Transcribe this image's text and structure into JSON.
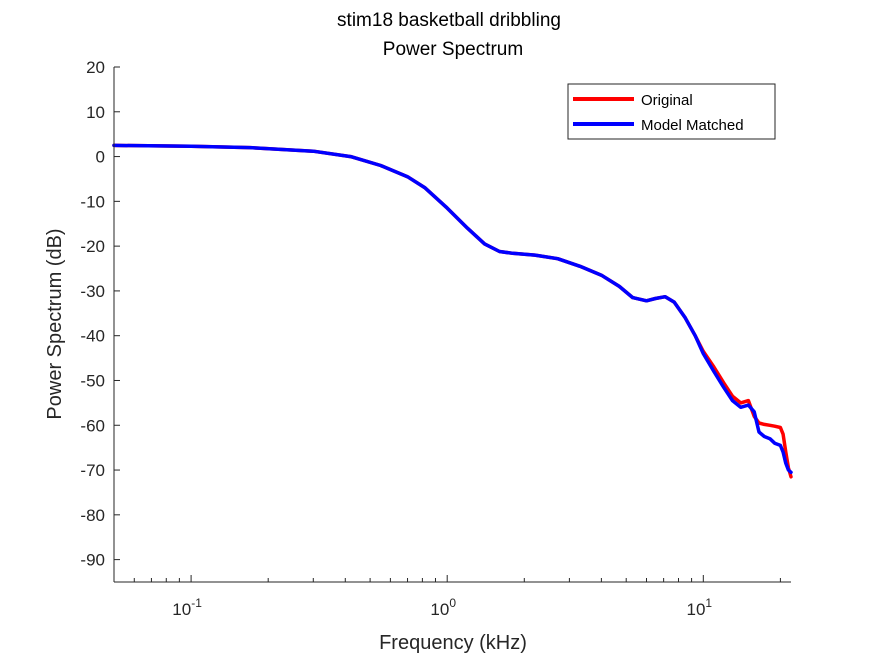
{
  "chart_data": {
    "type": "line",
    "title": [
      "stim18 basketball dribbling",
      "Power Spectrum"
    ],
    "xlabel": "Frequency (kHz)",
    "ylabel": "Power Spectrum (dB)",
    "xscale": "log",
    "xlim": [
      0.05,
      22
    ],
    "ylim": [
      -95,
      20
    ],
    "yticks": [
      20,
      10,
      0,
      -10,
      -20,
      -30,
      -40,
      -50,
      -60,
      -70,
      -80,
      -90
    ],
    "xticks": [
      {
        "base": "10",
        "exp": "-1",
        "value": 0.1
      },
      {
        "base": "10",
        "exp": "0",
        "value": 1
      },
      {
        "base": "10",
        "exp": "1",
        "value": 10
      }
    ],
    "grid": false,
    "legend_position": "top-right",
    "series": [
      {
        "name": "Original",
        "color": "#ff0000",
        "x": [
          0.05,
          0.1,
          0.17,
          0.3,
          0.42,
          0.55,
          0.7,
          0.82,
          1.0,
          1.2,
          1.4,
          1.6,
          1.8,
          2.2,
          2.7,
          3.3,
          4.0,
          4.7,
          5.3,
          6.0,
          6.5,
          7.1,
          7.7,
          8.5,
          9.3,
          10.0,
          11.0,
          12.0,
          13.0,
          14.0,
          15.0,
          15.8,
          16.5,
          17.3,
          18.2,
          19.0,
          20.0,
          20.5,
          21.0,
          21.5,
          22.0
        ],
        "y": [
          2.5,
          2.3,
          2.0,
          1.2,
          0.0,
          -2.0,
          -4.5,
          -7.0,
          -11.5,
          -16.0,
          -19.5,
          -21.2,
          -21.6,
          -22.0,
          -22.8,
          -24.5,
          -26.5,
          -29.0,
          -31.5,
          -32.2,
          -31.7,
          -31.3,
          -32.5,
          -36.0,
          -40.0,
          -43.5,
          -47.0,
          -50.5,
          -53.5,
          -55.0,
          -54.5,
          -58.0,
          -59.5,
          -59.8,
          -60.0,
          -60.2,
          -60.5,
          -62.0,
          -66.0,
          -69.5,
          -71.5
        ]
      },
      {
        "name": "Model Matched",
        "color": "#0000ff",
        "x": [
          0.05,
          0.1,
          0.17,
          0.3,
          0.42,
          0.55,
          0.7,
          0.82,
          1.0,
          1.2,
          1.4,
          1.6,
          1.8,
          2.2,
          2.7,
          3.3,
          4.0,
          4.7,
          5.3,
          6.0,
          6.5,
          7.1,
          7.7,
          8.5,
          9.3,
          10.0,
          11.0,
          12.0,
          13.0,
          14.0,
          15.0,
          15.8,
          16.5,
          17.3,
          18.2,
          19.0,
          20.0,
          20.5,
          21.0,
          21.5,
          22.0
        ],
        "y": [
          2.5,
          2.3,
          2.0,
          1.2,
          0.0,
          -2.0,
          -4.5,
          -7.0,
          -11.5,
          -16.0,
          -19.5,
          -21.2,
          -21.6,
          -22.0,
          -22.8,
          -24.5,
          -26.5,
          -29.0,
          -31.5,
          -32.2,
          -31.7,
          -31.3,
          -32.5,
          -36.0,
          -40.0,
          -44.0,
          -48.0,
          -51.5,
          -54.5,
          -56.0,
          -55.5,
          -57.0,
          -61.5,
          -62.5,
          -63.0,
          -64.0,
          -64.5,
          -66.0,
          -68.5,
          -70.0,
          -70.5
        ]
      }
    ]
  }
}
